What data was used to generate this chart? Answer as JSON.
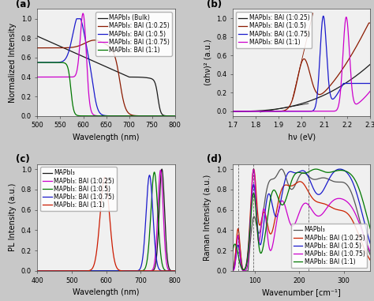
{
  "fig_bg": "#c8c8c8",
  "panel_bg": "#f0f0f0",
  "label_fontsize": 7,
  "tick_fontsize": 6,
  "legend_fontsize": 5.5,
  "a_xlabel": "Wavelength (nm)",
  "a_ylabel": "Normalized Intensity",
  "a_xlim": [
    500,
    800
  ],
  "a_ylim": [
    0.0,
    1.1
  ],
  "a_legend": [
    "MAPbI₃ (Bulk)",
    "MAPbI₃: BAI (1:0.25)",
    "MAPbI₃: BAI (1:0.5)",
    "MAPbI₃: BAI (1:0.75)",
    "MAPbI₃: BAI (1:1)"
  ],
  "a_colors": [
    "#1a1a1a",
    "#8b1a00",
    "#1a1acc",
    "#cc00cc",
    "#007700"
  ],
  "b_xlabel": "hν (eV)",
  "b_ylabel": "(αhν)² (a.u.)",
  "b_xlim": [
    1.7,
    2.3
  ],
  "b_ylim": [
    -0.05,
    1.1
  ],
  "b_legend": [
    "MAPbI₃: BAI (1:0.25)",
    "MAPbI₃: BAI (1:0.5)",
    "MAPbI₃: BAI (1:0.75)",
    "MAPbI₃: BAI (1:1)"
  ],
  "b_colors": [
    "#1a1a1a",
    "#8b1a00",
    "#1a1acc",
    "#cc00cc"
  ],
  "c_xlabel": "Wavelength (nm)",
  "c_ylabel": "PL Intensity (a.u.)",
  "c_xlim": [
    400,
    800
  ],
  "c_ylim": [
    0.0,
    1.05
  ],
  "c_legend": [
    "MAPbI₃",
    "MAPbI₃: BAI (1:0.25)",
    "MAPbI₃: BAI (1:0.5)",
    "MAPbI₃: BAI (1:0.75)",
    "MAPbI₃: BAI (1:1)"
  ],
  "c_colors": [
    "#1a1a1a",
    "#cc00cc",
    "#007700",
    "#1a1acc",
    "#cc1a00"
  ],
  "d_xlabel": "Wavenumber [cm⁻¹]",
  "d_ylabel": "Raman Intensity (a.u.)",
  "d_xlim": [
    50,
    360
  ],
  "d_ylim": [
    0.0,
    1.05
  ],
  "d_legend": [
    "MAPbI₃",
    "MAPbI₃: BAI (1:0.25)",
    "MAPbI₃: BAI (1:0.5)",
    "MAPbI₃: BAI (1:0.75)",
    "MAPbI₃: BAI (1:1)"
  ],
  "d_colors": [
    "#555555",
    "#cc2200",
    "#1a1acc",
    "#cc00cc",
    "#007700"
  ],
  "d_vlines": [
    62,
    97,
    220
  ]
}
